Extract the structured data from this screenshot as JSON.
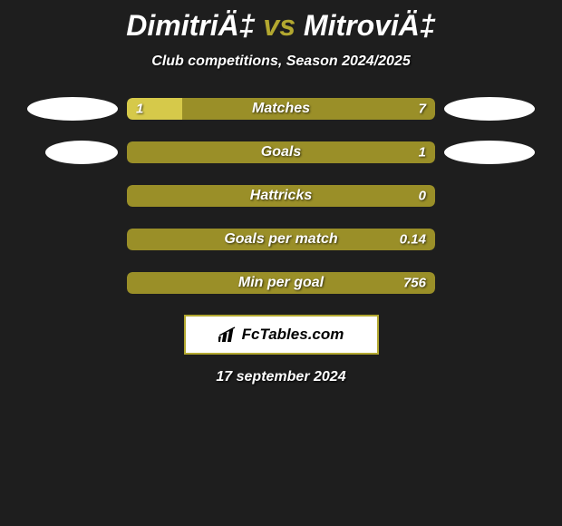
{
  "background_color": "#1e1e1e",
  "title": {
    "left": "DimitriÄ‡",
    "vs": "vs",
    "right": "MitroviÄ‡",
    "left_color": "#ffffff",
    "vs_color": "#b3a830",
    "right_color": "#ffffff",
    "fontsize": 32
  },
  "subtitle": "Club competitions, Season 2024/2025",
  "left_color": "#d6c94a",
  "right_color": "#9a8f28",
  "oval_color": "#ffffff",
  "stats": [
    {
      "label": "Matches",
      "left_val": "1",
      "right_val": "7",
      "left_pct": 18,
      "right_pct": 82,
      "show_ovals": true
    },
    {
      "label": "Goals",
      "left_val": "",
      "right_val": "1",
      "left_pct": 0,
      "right_pct": 100,
      "show_ovals": true
    },
    {
      "label": "Hattricks",
      "left_val": "",
      "right_val": "0",
      "left_pct": 0,
      "right_pct": 100,
      "show_ovals": false
    },
    {
      "label": "Goals per match",
      "left_val": "",
      "right_val": "0.14",
      "left_pct": 0,
      "right_pct": 100,
      "show_ovals": false
    },
    {
      "label": "Min per goal",
      "left_val": "",
      "right_val": "756",
      "left_pct": 0,
      "right_pct": 100,
      "show_ovals": false
    }
  ],
  "logo_text": "FcTables.com",
  "date": "17 september 2024"
}
